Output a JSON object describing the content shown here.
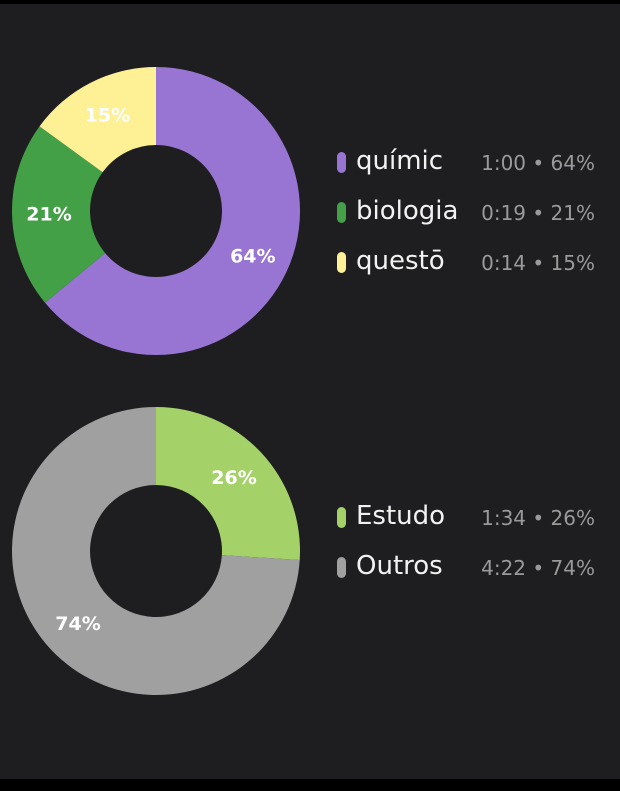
{
  "chart_data": [
    {
      "type": "pie",
      "series": [
        {
          "name": "químic",
          "value": 64,
          "label": "64%",
          "time": "1:00",
          "detail": "1:00 • 64%",
          "color": "#9875d2"
        },
        {
          "name": "biologia",
          "value": 21,
          "label": "21%",
          "time": "0:19",
          "detail": "0:19 • 21%",
          "color": "#43a047"
        },
        {
          "name": "questō",
          "value": 15,
          "label": "15%",
          "time": "0:14",
          "detail": "0:14 • 15%",
          "color": "#fef195"
        }
      ]
    },
    {
      "type": "pie",
      "series": [
        {
          "name": "Estudo",
          "value": 26,
          "label": "26%",
          "time": "1:34",
          "detail": "1:34 • 26%",
          "color": "#a5d169"
        },
        {
          "name": "Outros",
          "value": 74,
          "label": "74%",
          "time": "4:22",
          "detail": "4:22 • 74%",
          "color": "#a0a0a0"
        }
      ]
    }
  ]
}
